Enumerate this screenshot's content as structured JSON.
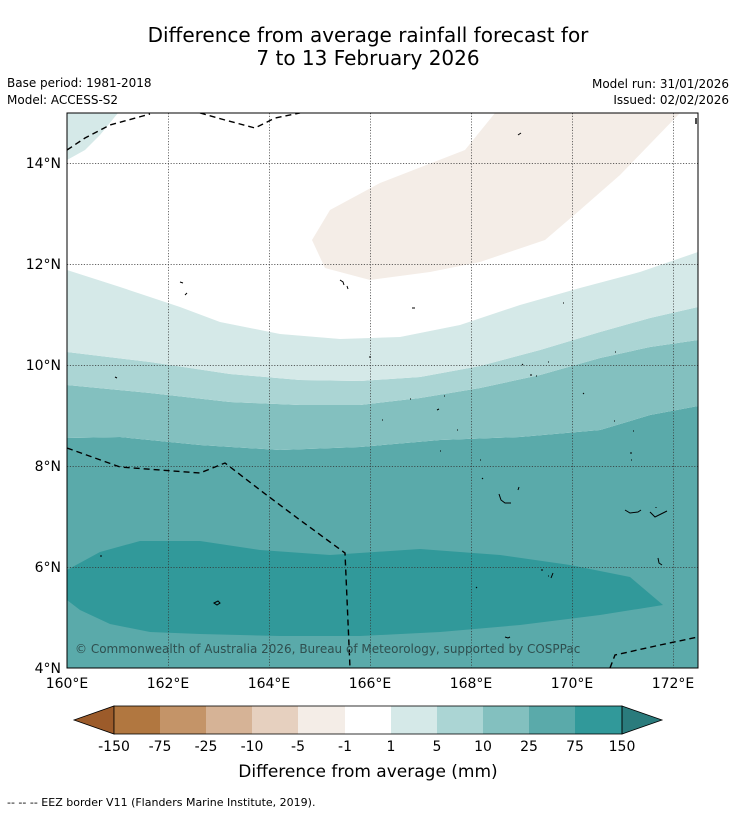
{
  "title": {
    "line1": "Difference from average rainfall forecast for",
    "line2": "7 to 13 February 2026"
  },
  "meta": {
    "base_period": "Base period: 1981-2018",
    "model": "Model: ACCESS-S2",
    "model_run": "Model run: 31/01/2026",
    "issued": "Issued: 02/02/2026"
  },
  "map": {
    "lon_ticks": [
      "160°E",
      "162°E",
      "164°E",
      "166°E",
      "168°E",
      "170°E",
      "172°E"
    ],
    "lat_ticks": [
      "14°N",
      "12°N",
      "10°N",
      "8°N",
      "6°N",
      "4°N"
    ],
    "lon_range": [
      160,
      172.5
    ],
    "lat_range": [
      4,
      15
    ],
    "copyright": "© Commonwealth of Australia 2026, Bureau of Meteorology, supported by COSPPac"
  },
  "colorbar": {
    "ticks": [
      "-150",
      "-75",
      "-25",
      "-10",
      "-5",
      "-1",
      "1",
      "5",
      "10",
      "25",
      "75",
      "150"
    ],
    "colors": [
      "#9c5b2a",
      "#b17740",
      "#c49468",
      "#d6b396",
      "#e6d0bf",
      "#f4ede7",
      "#ffffff",
      "#d5e9e8",
      "#abd5d4",
      "#83c0bf",
      "#5aaaaa",
      "#31999a",
      "#2a7b7c"
    ],
    "label": "Difference from average (mm)"
  },
  "footnote": "--  --  -- EEZ border V11 (Flanders Marine Institute, 2019)."
}
